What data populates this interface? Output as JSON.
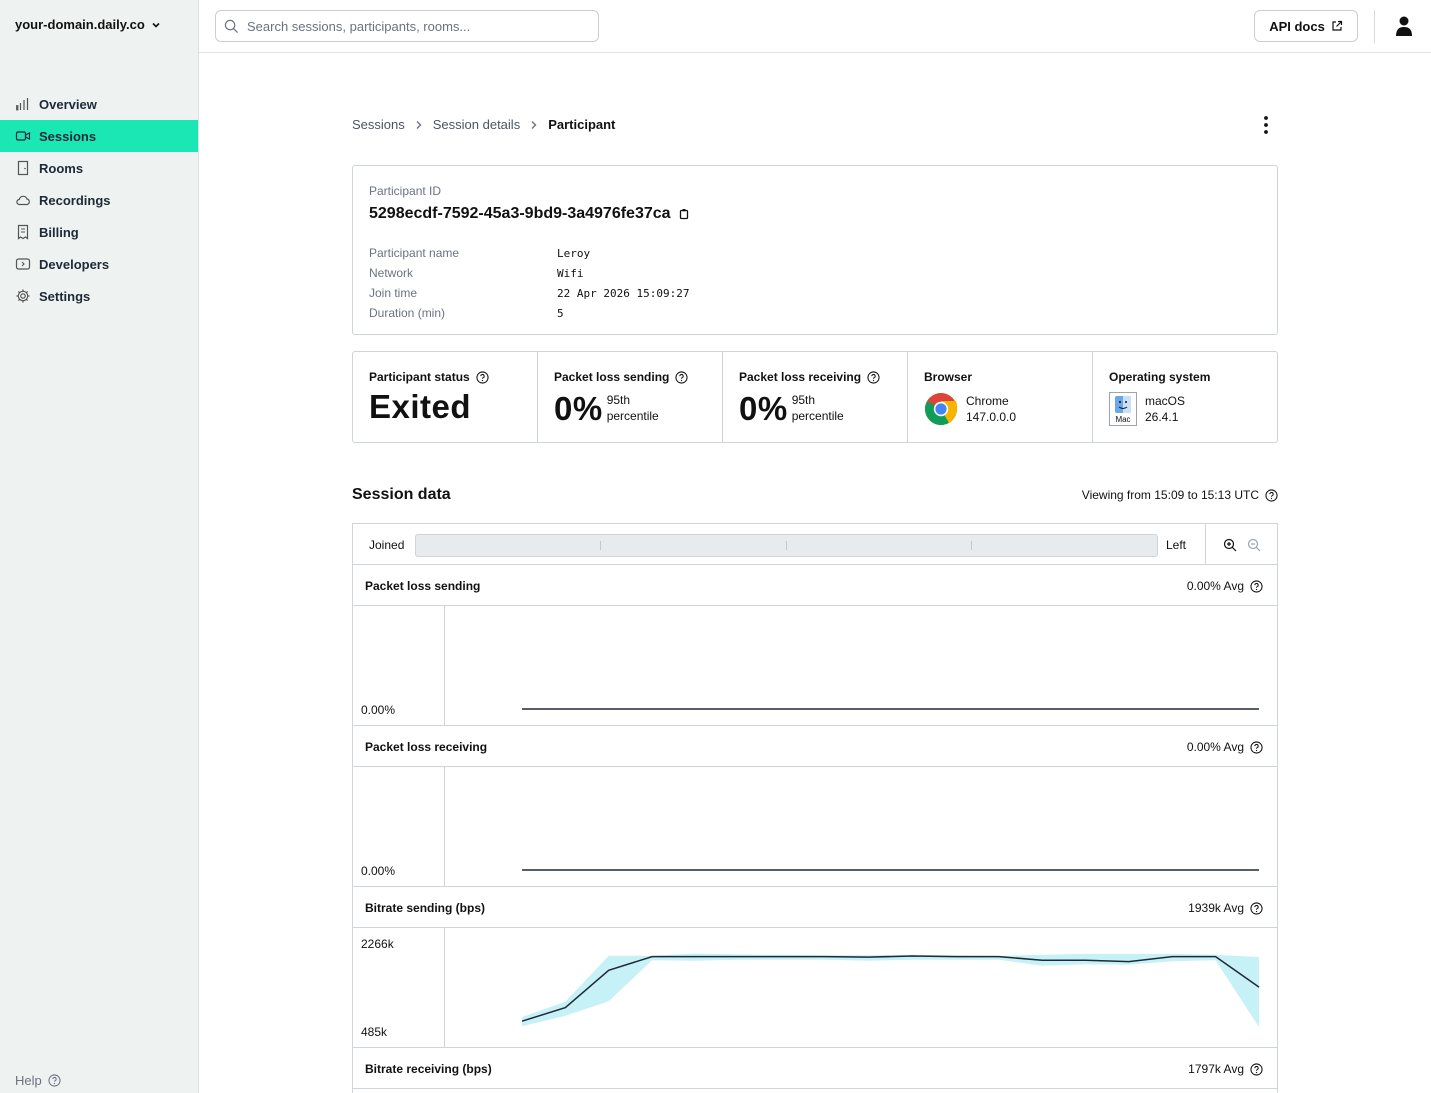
{
  "app": {
    "domain_selector": "your-domain.daily.co",
    "help_label": "Help"
  },
  "sidebar": {
    "items": [
      {
        "label": "Overview",
        "icon": "bar-chart-icon"
      },
      {
        "label": "Sessions",
        "icon": "video-icon",
        "active": true
      },
      {
        "label": "Rooms",
        "icon": "door-icon"
      },
      {
        "label": "Recordings",
        "icon": "cloud-icon"
      },
      {
        "label": "Billing",
        "icon": "receipt-icon"
      },
      {
        "label": "Developers",
        "icon": "code-icon"
      },
      {
        "label": "Settings",
        "icon": "gear-icon"
      }
    ]
  },
  "topbar": {
    "search_placeholder": "Search sessions, participants, rooms...",
    "api_docs_label": "API docs"
  },
  "breadcrumb": {
    "items": [
      "Sessions",
      "Session details"
    ],
    "current": "Participant"
  },
  "participant": {
    "id_label": "Participant ID",
    "id": "5298ecdf-7592-45a3-9bd9-3a4976fe37ca",
    "details": [
      {
        "key": "Participant name",
        "value": "Leroy"
      },
      {
        "key": "Network",
        "value": "Wifi"
      },
      {
        "key": "Join time",
        "value": "22 Apr 2026 15:09:27"
      },
      {
        "key": "Duration (min)",
        "value": "5"
      }
    ]
  },
  "stats": {
    "status": {
      "title": "Participant status",
      "value": "Exited"
    },
    "loss_sending": {
      "title": "Packet loss sending",
      "value": "0%",
      "sub1": "95th",
      "sub2": "percentile"
    },
    "loss_receiving": {
      "title": "Packet loss receiving",
      "value": "0%",
      "sub1": "95th",
      "sub2": "percentile"
    },
    "browser": {
      "title": "Browser",
      "name": "Chrome",
      "version": "147.0.0.0"
    },
    "os": {
      "title": "Operating system",
      "name": "macOS",
      "version": "26.4.1",
      "icon_label": "Mac"
    }
  },
  "session_data": {
    "title": "Session data",
    "viewing": "Viewing from 15:09 to 15:13 UTC",
    "timeline_start": "Joined",
    "timeline_end": "Left"
  },
  "colors": {
    "accent": "#1be7b4",
    "band": "#c6f1f6",
    "line": "#1f2937"
  },
  "chart_data": [
    {
      "type": "line",
      "title": "Packet loss sending",
      "avg": "0.00% Avg",
      "y_labels": [
        "0.00%"
      ],
      "ylim": [
        0,
        1
      ],
      "values": [
        0,
        0,
        0,
        0,
        0,
        0,
        0,
        0,
        0,
        0,
        0,
        0,
        0,
        0,
        0,
        0,
        0,
        0
      ]
    },
    {
      "type": "line",
      "title": "Packet loss receiving",
      "avg": "0.00% Avg",
      "y_labels": [
        "0.00%"
      ],
      "ylim": [
        0,
        1
      ],
      "values": [
        0,
        0,
        0,
        0,
        0,
        0,
        0,
        0,
        0,
        0,
        0,
        0,
        0,
        0,
        0,
        0,
        0,
        0
      ]
    },
    {
      "type": "area",
      "title": "Bitrate sending (bps)",
      "avg": "1939k Avg",
      "y_labels": [
        "2266k",
        "485k"
      ],
      "ylim": [
        485,
        2266
      ],
      "values": [
        700,
        1000,
        1820,
        2120,
        2120,
        2120,
        2120,
        2120,
        2110,
        2135,
        2120,
        2120,
        2040,
        2040,
        2010,
        2120,
        2120,
        1450
      ],
      "band_low": [
        590,
        820,
        1140,
        2040,
        2030,
        2050,
        2050,
        2050,
        2030,
        2050,
        2050,
        2050,
        1920,
        1950,
        1940,
        2020,
        2040,
        570
      ],
      "band_high": [
        790,
        1130,
        2140,
        2140,
        2190,
        2170,
        2160,
        2150,
        2150,
        2160,
        2150,
        2140,
        2160,
        2180,
        2180,
        2180,
        2160,
        2110
      ]
    },
    {
      "type": "area",
      "title": "Bitrate receiving (bps)",
      "avg": "1797k Avg",
      "y_labels": [],
      "values": []
    }
  ]
}
